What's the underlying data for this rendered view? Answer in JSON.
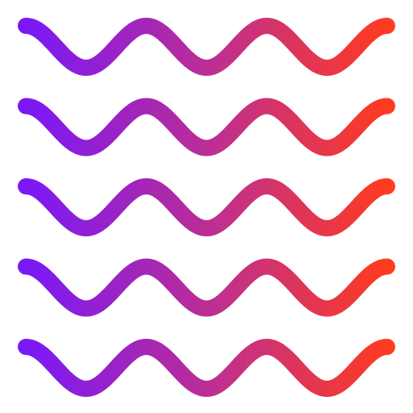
{
  "icon": {
    "name": "waves-icon",
    "wave_count": 5,
    "gradient": {
      "start_color": "#7A18F7",
      "mid_color": "#C1308A",
      "end_color": "#FF3B20"
    }
  }
}
